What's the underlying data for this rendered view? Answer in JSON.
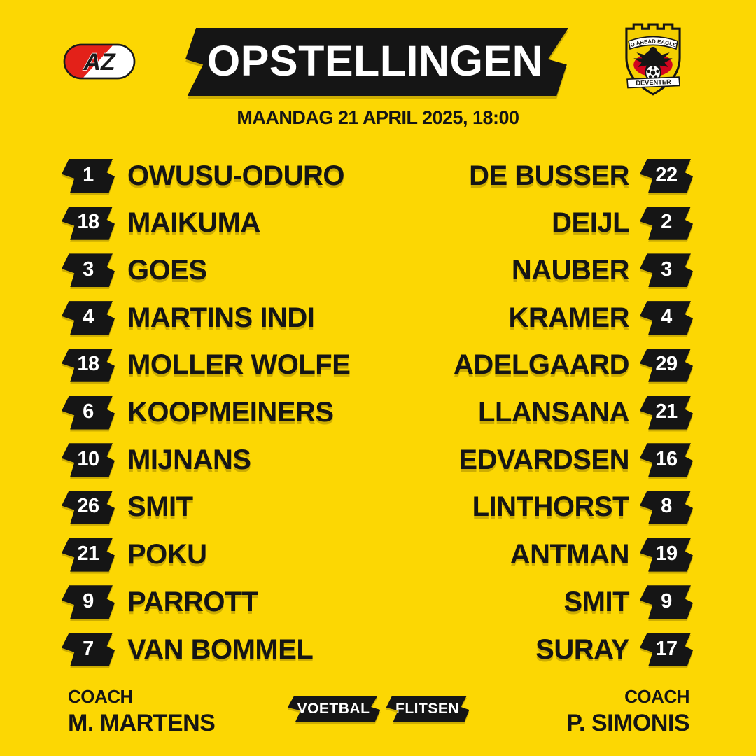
{
  "header": {
    "title": "OPSTELLINGEN",
    "date_time": "MAANDAG 21 APRIL 2025, 18:00"
  },
  "home": {
    "logo": {
      "abbr": "AZ"
    },
    "coach_label": "COACH",
    "coach_name": "M. MARTENS",
    "players": [
      {
        "number": "1",
        "name": "OWUSU-ODURO"
      },
      {
        "number": "18",
        "name": "MAIKUMA"
      },
      {
        "number": "3",
        "name": "GOES"
      },
      {
        "number": "4",
        "name": "MARTINS INDI"
      },
      {
        "number": "18",
        "name": "MOLLER WOLFE"
      },
      {
        "number": "6",
        "name": "KOOPMEINERS"
      },
      {
        "number": "10",
        "name": "MIJNANS"
      },
      {
        "number": "26",
        "name": "SMIT"
      },
      {
        "number": "21",
        "name": "POKU"
      },
      {
        "number": "9",
        "name": "PARROTT"
      },
      {
        "number": "7",
        "name": "VAN BOMMEL"
      }
    ]
  },
  "away": {
    "logo": {
      "club_top": "GO AHEAD EAGLES",
      "club_bottom": "DEVENTER"
    },
    "coach_label": "COACH",
    "coach_name": "P. SIMONIS",
    "players": [
      {
        "number": "22",
        "name": "DE BUSSER"
      },
      {
        "number": "2",
        "name": "DEIJL"
      },
      {
        "number": "3",
        "name": "NAUBER"
      },
      {
        "number": "4",
        "name": "KRAMER"
      },
      {
        "number": "29",
        "name": "ADELGAARD"
      },
      {
        "number": "21",
        "name": "LLANSANA"
      },
      {
        "number": "16",
        "name": "EDVARDSEN"
      },
      {
        "number": "8",
        "name": "LINTHORST"
      },
      {
        "number": "19",
        "name": "ANTMAN"
      },
      {
        "number": "9",
        "name": "SMIT"
      },
      {
        "number": "17",
        "name": "SURAY"
      }
    ]
  },
  "brand": {
    "left": "VOETBAL",
    "right": "FLITSEN"
  },
  "colors": {
    "background": "#FCD703",
    "panel_black": "#151515",
    "text_black": "#151515",
    "white": "#FFFFFF",
    "az_red": "#E32119",
    "gae_red": "#D2051E",
    "gae_yellow": "#F3CF00"
  }
}
